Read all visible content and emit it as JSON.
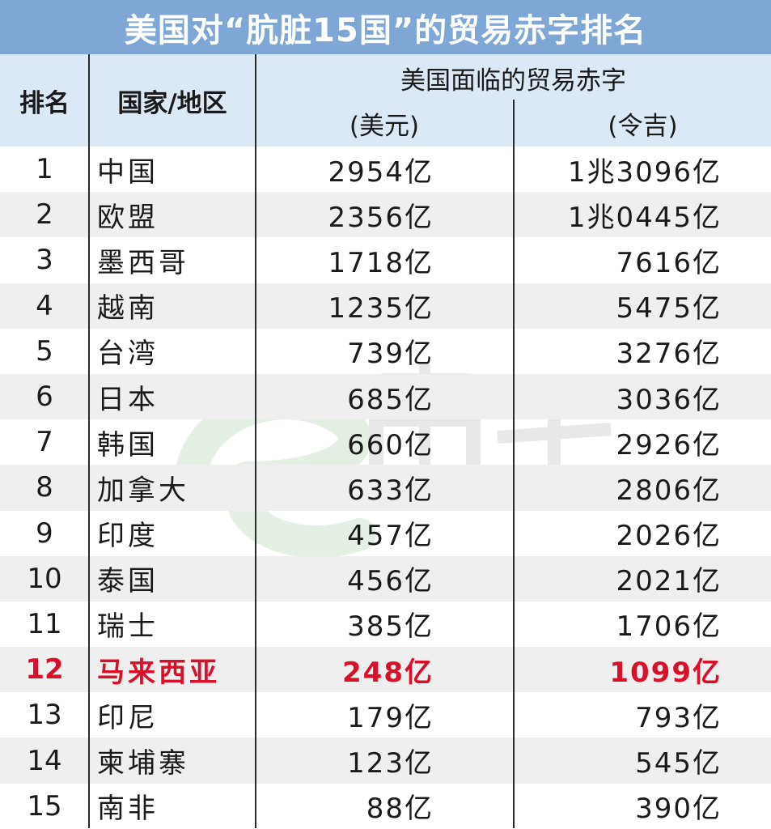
{
  "title": "美国对“肮脏15国”的贸易赤字排名",
  "header": {
    "rank": "排名",
    "country": "国家/地区",
    "deficit": "美国面临的贸易赤字",
    "usd": "(美元)",
    "myr": "(令吉)"
  },
  "rows": [
    {
      "rank": "1",
      "country": "中国",
      "usd": "2954亿",
      "myr": "1兆3096亿"
    },
    {
      "rank": "2",
      "country": "欧盟",
      "usd": "2356亿",
      "myr": "1兆0445亿"
    },
    {
      "rank": "3",
      "country": "墨西哥",
      "usd": "1718亿",
      "myr": "7616亿"
    },
    {
      "rank": "4",
      "country": "越南",
      "usd": "1235亿",
      "myr": "5475亿"
    },
    {
      "rank": "5",
      "country": "台湾",
      "usd": "739亿",
      "myr": "3276亿"
    },
    {
      "rank": "6",
      "country": "日本",
      "usd": "685亿",
      "myr": "3036亿"
    },
    {
      "rank": "7",
      "country": "韩国",
      "usd": "660亿",
      "myr": "2926亿"
    },
    {
      "rank": "8",
      "country": "加拿大",
      "usd": "633亿",
      "myr": "2806亿"
    },
    {
      "rank": "9",
      "country": "印度",
      "usd": "457亿",
      "myr": "2026亿"
    },
    {
      "rank": "10",
      "country": "泰国",
      "usd": "456亿",
      "myr": "2021亿"
    },
    {
      "rank": "11",
      "country": "瑞士",
      "usd": "385亿",
      "myr": "1706亿"
    },
    {
      "rank": "12",
      "country": "马来西亚",
      "usd": "248亿",
      "myr": "1099亿"
    },
    {
      "rank": "13",
      "country": "印尼",
      "usd": "179亿",
      "myr": "793亿"
    },
    {
      "rank": "14",
      "country": "柬埔寨",
      "usd": "123亿",
      "myr": "545亿"
    },
    {
      "rank": "15",
      "country": "南非",
      "usd": "88亿",
      "myr": "390亿"
    }
  ],
  "highlight_rank": "12",
  "watermark": {
    "text": "eNanyang.my",
    "logo_text": "南洋"
  },
  "colors": {
    "title_bg": "#7ea7d6",
    "header_bg": "#dbe9f7",
    "alt_row": "#efefef",
    "highlight": "#d8102a"
  }
}
